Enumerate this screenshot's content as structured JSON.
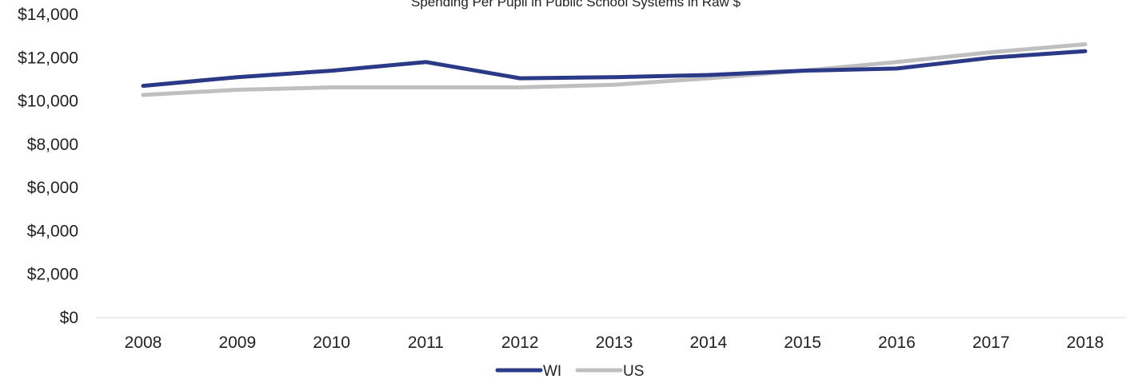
{
  "chart_data": {
    "type": "line",
    "title": "Spending Per Pupil in Public School Systems in Raw $",
    "x": [
      "2008",
      "2009",
      "2010",
      "2011",
      "2012",
      "2013",
      "2014",
      "2015",
      "2016",
      "2017",
      "2018"
    ],
    "series": [
      {
        "name": "WI",
        "color": "#2b3a87",
        "values": [
          10700,
          11100,
          11400,
          11800,
          11050,
          11100,
          11200,
          11400,
          11500,
          12000,
          12300
        ]
      },
      {
        "name": "US",
        "color": "#bfbfbf",
        "values": [
          10280,
          10520,
          10630,
          10630,
          10630,
          10750,
          11050,
          11400,
          11800,
          12250,
          12620
        ]
      }
    ],
    "ylim": [
      0,
      14000
    ],
    "yticks": [
      0,
      2000,
      4000,
      6000,
      8000,
      10000,
      12000,
      14000
    ],
    "ytick_labels": [
      "$0",
      "$2,000",
      "$4,000",
      "$6,000",
      "$8,000",
      "$10,000",
      "$12,000",
      "$14,000"
    ],
    "grid": false,
    "legend": "bottom"
  }
}
